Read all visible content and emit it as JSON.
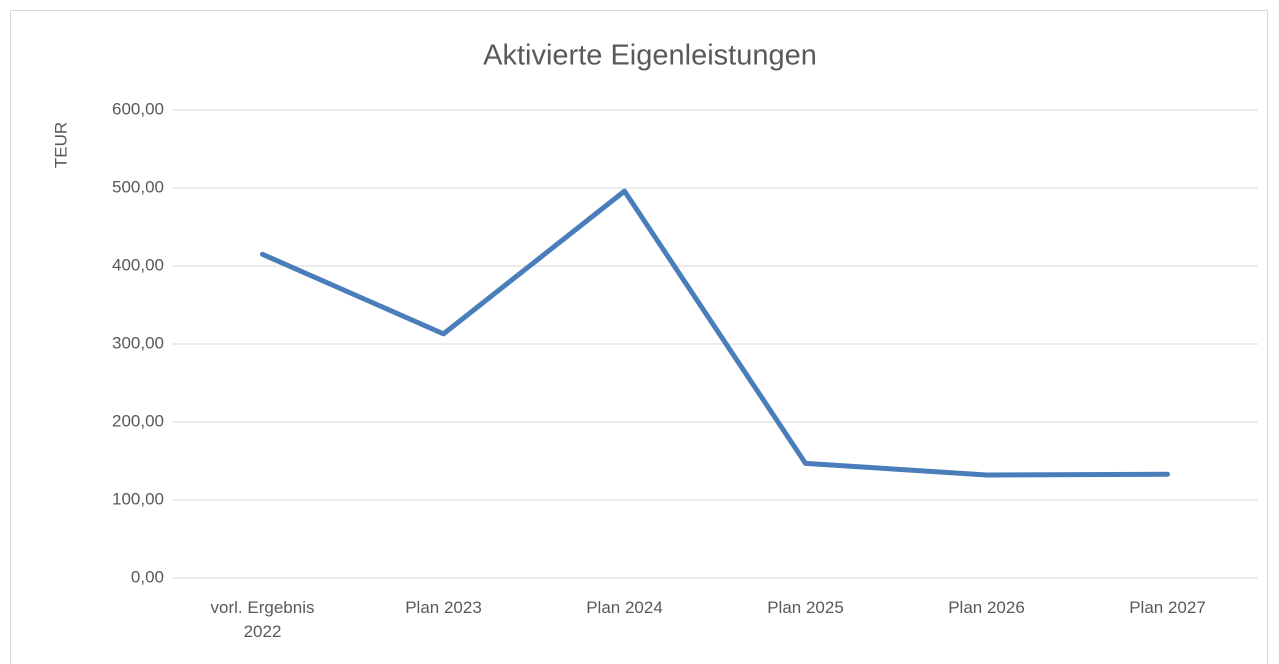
{
  "chart_data": {
    "type": "line",
    "title": "Aktivierte Eigenleistungen",
    "y_label": "TEUR",
    "categories": [
      "vorl. Ergebnis 2022",
      "Plan 2023",
      "Plan 2024",
      "Plan 2025",
      "Plan 2026",
      "Plan 2027"
    ],
    "series": [
      {
        "name": "Aktivierte Eigenleistungen",
        "color": "#4a7ebb",
        "values": [
          415,
          313,
          496,
          147,
          132,
          133
        ]
      }
    ],
    "ylim": [
      0,
      600
    ],
    "yticks": [
      {
        "value": 0,
        "label": "0,00"
      },
      {
        "value": 100,
        "label": "100,00"
      },
      {
        "value": 200,
        "label": "200,00"
      },
      {
        "value": 300,
        "label": "300,00"
      },
      {
        "value": 400,
        "label": "400,00"
      },
      {
        "value": 500,
        "label": "500,00"
      },
      {
        "value": 600,
        "label": "600,00"
      }
    ],
    "grid": true
  }
}
